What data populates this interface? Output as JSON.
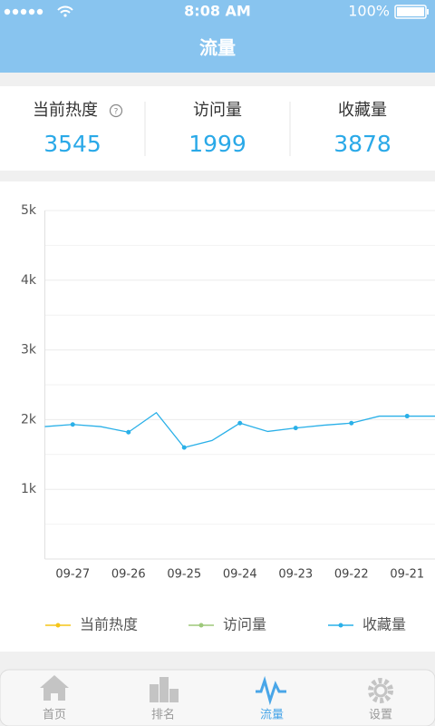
{
  "status_bar": {
    "time": "8:08 AM",
    "battery": "100%"
  },
  "header": {
    "title": "流量"
  },
  "stats": [
    {
      "label": "当前热度",
      "value": 3545
    },
    {
      "label": "访问量",
      "value": 1999
    },
    {
      "label": "收藏量",
      "value": 3878
    }
  ],
  "chart_data": {
    "type": "line",
    "categories": [
      null,
      "09-27",
      null,
      "09-26",
      null,
      "09-25",
      null,
      "09-24",
      null,
      "09-23",
      null,
      "09-22",
      null,
      "09-21",
      null
    ],
    "series": [
      {
        "name": "当前热度",
        "color": "#f5c518",
        "values": [
          null,
          null,
          null,
          null,
          null,
          null,
          null,
          null,
          null,
          null,
          null,
          null,
          null,
          null,
          null
        ]
      },
      {
        "name": "访问量",
        "color": "#9dc97a",
        "values": [
          null,
          null,
          null,
          null,
          null,
          null,
          null,
          null,
          null,
          null,
          null,
          null,
          null,
          null,
          null
        ]
      },
      {
        "name": "收藏量",
        "color": "#2ab0e8",
        "values": [
          1900,
          1930,
          1900,
          1820,
          2100,
          1600,
          1700,
          1950,
          1830,
          1880,
          1920,
          1950,
          2050,
          2050,
          2050
        ]
      }
    ],
    "ylim": [
      0,
      5000
    ],
    "yticks": [
      {
        "value": 1000,
        "label": "1k"
      },
      {
        "value": 2000,
        "label": "2k"
      },
      {
        "value": 3000,
        "label": "3k"
      },
      {
        "value": 4000,
        "label": "4k"
      },
      {
        "value": 5000,
        "label": "5k"
      }
    ],
    "yminor_ticks": [
      500,
      1500,
      2500,
      3500,
      4500
    ],
    "grid": true,
    "legend": "bottom"
  },
  "tabs": [
    {
      "label": "首页"
    },
    {
      "label": "排名"
    },
    {
      "label": "流量",
      "active": true
    },
    {
      "label": "设置"
    }
  ]
}
